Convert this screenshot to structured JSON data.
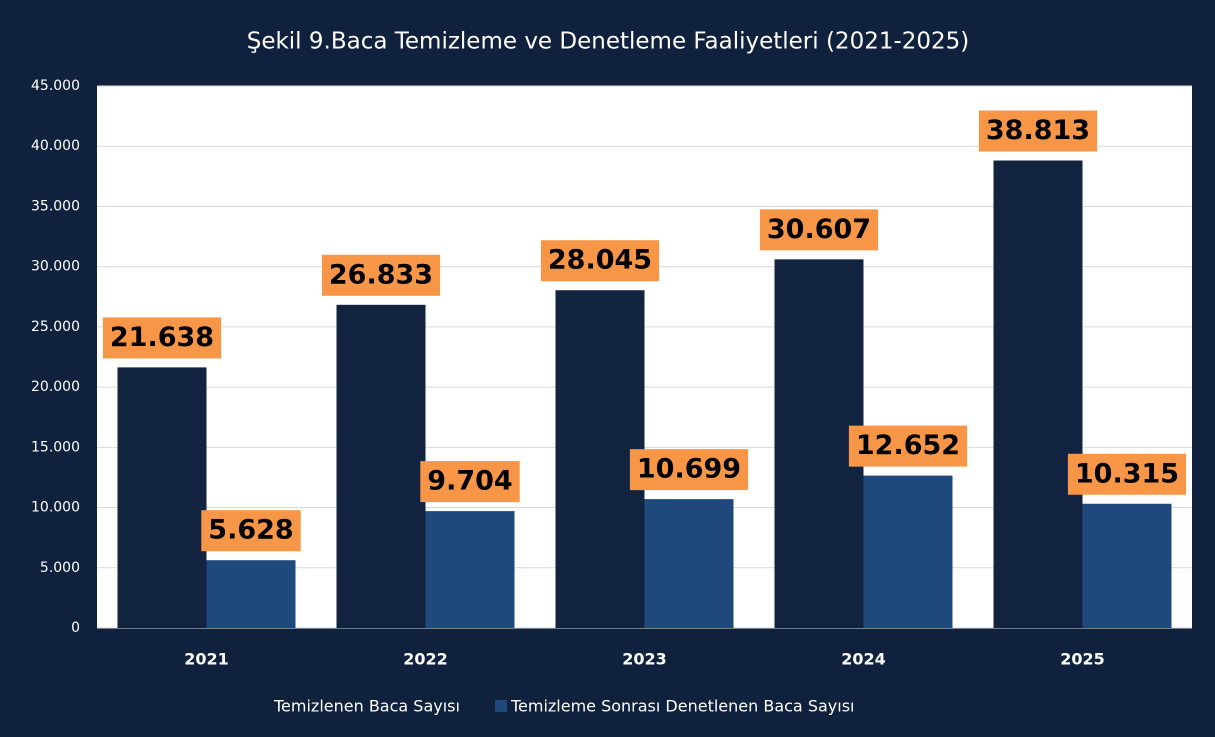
{
  "chart_data": {
    "type": "bar",
    "title": "Şekil 9.Baca Temizleme ve  Denetleme  Faaliyetleri (2021-2025)",
    "categories": [
      "2021",
      "2022",
      "2023",
      "2024",
      "2025"
    ],
    "series": [
      {
        "name": "Temizlenen Baca Sayısı",
        "color": "#12233f",
        "values": [
          21638,
          26833,
          28045,
          30607,
          38813
        ],
        "value_labels": [
          "21.638",
          "26.833",
          "28.045",
          "30.607",
          "38.813"
        ]
      },
      {
        "name": "Temizleme Sonrası Denetlenen Baca Sayısı",
        "color": "#1f497d",
        "values": [
          5628,
          9704,
          10699,
          12652,
          10315
        ],
        "value_labels": [
          "5.628",
          "9.704",
          "10.699",
          "12.652",
          "10.315"
        ]
      }
    ],
    "ylim": [
      0,
      45000
    ],
    "yticks": [
      0,
      {
        "value": 5000,
        "label": "5.000"
      },
      {
        "value": 10000,
        "label": "10.000"
      },
      {
        "value": 15000,
        "label": "15.000"
      },
      {
        "value": 20000,
        "label": "20.000"
      },
      {
        "value": 25000,
        "label": "25.000"
      },
      {
        "value": 30000,
        "label": "30.000"
      },
      {
        "value": 35000,
        "label": "35.000"
      },
      {
        "value": 40000,
        "label": "40.000"
      },
      {
        "value": 45000,
        "label": "45.000"
      }
    ],
    "grid": true,
    "legend": "bottom",
    "label_color": "#f79646"
  }
}
